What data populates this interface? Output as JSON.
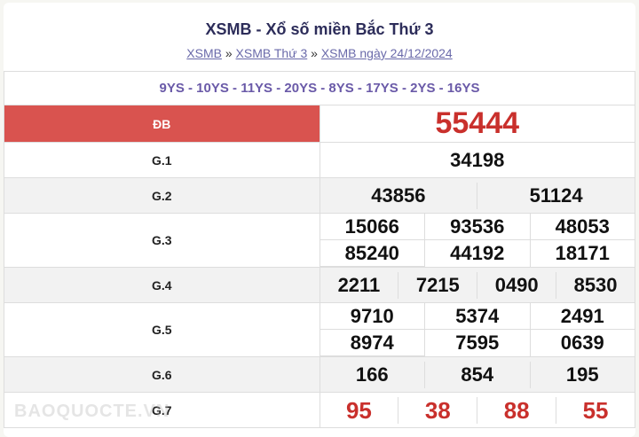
{
  "title": "XSMB - Xổ số miền Bắc Thứ 3",
  "breadcrumb": [
    "XSMB",
    "XSMB Thứ 3",
    "XSMB ngày 24/12/2024"
  ],
  "separator": "»",
  "codes": "9YS - 10YS - 11YS - 20YS - 8YS - 17YS - 2YS - 16YS",
  "prizes": {
    "db": {
      "label": "ĐB",
      "values": [
        "55444"
      ]
    },
    "g1": {
      "label": "G.1",
      "values": [
        "34198"
      ]
    },
    "g2": {
      "label": "G.2",
      "values": [
        "43856",
        "51124"
      ]
    },
    "g3": {
      "label": "G.3",
      "values": [
        "15066",
        "93536",
        "48053",
        "85240",
        "44192",
        "18171"
      ]
    },
    "g4": {
      "label": "G.4",
      "values": [
        "2211",
        "7215",
        "0490",
        "8530"
      ]
    },
    "g5": {
      "label": "G.5",
      "values": [
        "9710",
        "5374",
        "2491",
        "8974",
        "7595",
        "0639"
      ]
    },
    "g6": {
      "label": "G.6",
      "values": [
        "166",
        "854",
        "195"
      ]
    },
    "g7": {
      "label": "G.7",
      "values": [
        "95",
        "38",
        "88",
        "55"
      ]
    }
  },
  "watermark": "BAOQUOCTE.VN",
  "colors": {
    "special": "#c9302c",
    "label_bg": "#d9534f",
    "codes": "#6a5aa8"
  }
}
